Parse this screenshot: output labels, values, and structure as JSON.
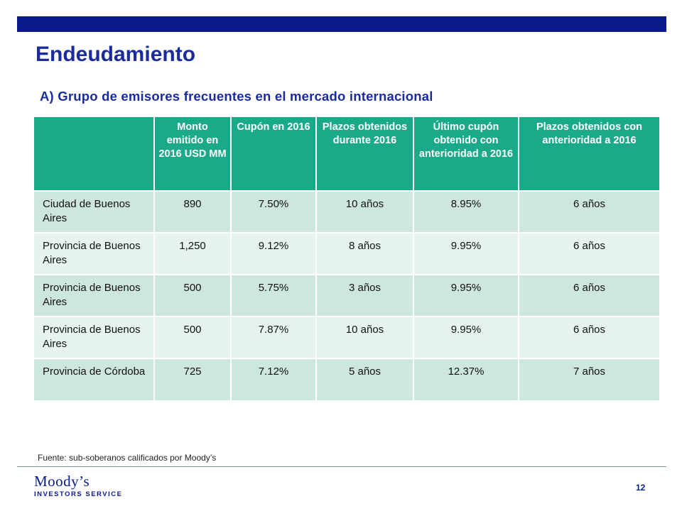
{
  "title": "Endeudamiento",
  "subtitle": "A) Grupo de emisores frecuentes en el mercado internacional",
  "table": {
    "headers": [
      "",
      "Monto emitido en 2016 USD MM",
      "Cupón en 2016",
      "Plazos obtenidos durante 2016",
      "Último cupón obtenido con anterioridad a 2016",
      "Plazos obtenidos con anterioridad a 2016"
    ],
    "rows": [
      [
        "Ciudad de Buenos Aires",
        "890",
        "7.50%",
        "10 años",
        "8.95%",
        "6 años"
      ],
      [
        "Provincia de Buenos Aires",
        "1,250",
        "9.12%",
        "8 años",
        "9.95%",
        "6 años"
      ],
      [
        "Provincia de Buenos Aires",
        "500",
        "5.75%",
        "3 años",
        "9.95%",
        "6 años"
      ],
      [
        "Provincia de Buenos Aires",
        "500",
        "7.87%",
        "10 años",
        "9.95%",
        "6 años"
      ],
      [
        "Provincia de Córdoba",
        "725",
        "7.12%",
        "5 años",
        "12.37%",
        "7 años"
      ]
    ]
  },
  "source": "Fuente: sub-soberanos calificados por Moody’s",
  "logo": {
    "main": "Moody’s",
    "sub": "INVESTORS SERVICE"
  },
  "page_number": "12",
  "colors": {
    "brand_blue": "#0a1a8c",
    "title_blue": "#1a2c9c",
    "header_green": "#1aaa8a",
    "row_dark": "#cde6de",
    "row_light": "#e7f3ef"
  }
}
